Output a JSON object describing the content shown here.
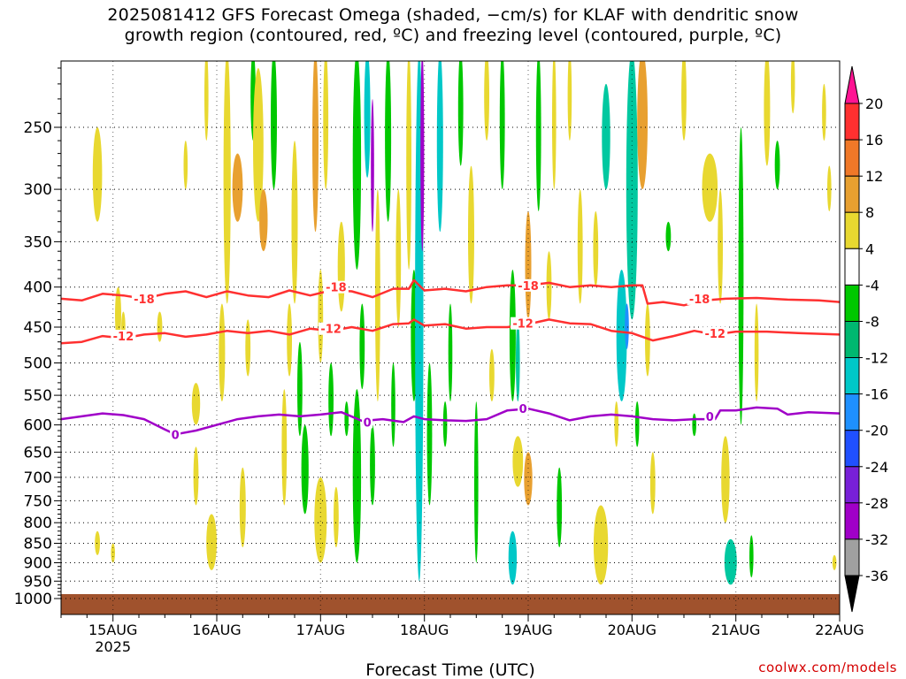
{
  "title": {
    "line1": "2025081412 GFS Forecast Omega (shaded, −cm/s) for KLAF with dendritic snow",
    "line2": "growth region (contoured, red, ºC) and freezing level (contoured, purple, ºC)"
  },
  "credit": "coolwx.com/models",
  "chart_data": {
    "type": "heatmap",
    "xlabel": "Forecast Time (UTC)",
    "ylabel": "",
    "x_ticks": [
      {
        "label": "15AUG",
        "sub": "2025",
        "day": 15
      },
      {
        "label": "16AUG",
        "sub": "",
        "day": 16
      },
      {
        "label": "17AUG",
        "sub": "",
        "day": 17
      },
      {
        "label": "18AUG",
        "sub": "",
        "day": 18
      },
      {
        "label": "19AUG",
        "sub": "",
        "day": 19
      },
      {
        "label": "20AUG",
        "sub": "",
        "day": 20
      },
      {
        "label": "21AUG",
        "sub": "",
        "day": 21
      },
      {
        "label": "22AUG",
        "sub": "",
        "day": 22
      }
    ],
    "xlim": [
      "2025-08-14T12Z",
      "2025-08-22T00Z"
    ],
    "y_ticks": [
      250,
      300,
      350,
      400,
      450,
      500,
      550,
      600,
      650,
      700,
      750,
      800,
      850,
      900,
      950,
      1000
    ],
    "ylim": [
      200,
      1020
    ],
    "y_scale": "log-pressure",
    "grid": true,
    "colorbar": {
      "labels": [
        "20",
        "16",
        "12",
        "8",
        "4",
        "-4",
        "-8",
        "-12",
        "-16",
        "-20",
        "-24",
        "-28",
        "-32",
        "-36"
      ],
      "colors": [
        "#ff1493",
        "#ff3030",
        "#f07828",
        "#e8a030",
        "#e8d830",
        "#ffffff",
        "#00c800",
        "#00b870",
        "#00c8c8",
        "#1e90ff",
        "#2050ff",
        "#7820d8",
        "#a000c8",
        "#a0a0a0",
        "#000000"
      ]
    },
    "shading_colors": {
      "light_yellow": "#e8d830",
      "orange": "#e8a030",
      "green": "#00c800",
      "teal": "#00c8a0",
      "cyan": "#00c8c8",
      "blue": "#1e90ff",
      "purple": "#a000c8"
    },
    "ground_color": "#a0522d",
    "contours": [
      {
        "name": "-18",
        "color": "#ff3030",
        "points": [
          [
            14.5,
            414
          ],
          [
            14.7,
            416
          ],
          [
            14.9,
            408
          ],
          [
            15.1,
            410
          ],
          [
            15.3,
            414
          ],
          [
            15.5,
            408
          ],
          [
            15.7,
            405
          ],
          [
            15.9,
            412
          ],
          [
            16.1,
            405
          ],
          [
            16.3,
            410
          ],
          [
            16.5,
            412
          ],
          [
            16.7,
            404
          ],
          [
            16.9,
            410
          ],
          [
            17.1,
            404
          ],
          [
            17.3,
            405
          ],
          [
            17.5,
            412
          ],
          [
            17.7,
            402
          ],
          [
            17.85,
            402
          ],
          [
            17.9,
            392
          ],
          [
            18.0,
            404
          ],
          [
            18.2,
            402
          ],
          [
            18.4,
            405
          ],
          [
            18.6,
            400
          ],
          [
            18.8,
            398
          ],
          [
            19.0,
            398
          ],
          [
            19.2,
            395
          ],
          [
            19.4,
            400
          ],
          [
            19.6,
            398
          ],
          [
            19.8,
            400
          ],
          [
            20.0,
            398
          ],
          [
            20.1,
            398
          ],
          [
            20.15,
            420
          ],
          [
            20.3,
            418
          ],
          [
            20.5,
            422
          ],
          [
            20.7,
            416
          ],
          [
            20.9,
            414
          ],
          [
            21.2,
            413
          ],
          [
            21.5,
            415
          ],
          [
            21.8,
            416
          ],
          [
            22.0,
            418
          ]
        ],
        "labels": [
          [
            15.3,
            414
          ],
          [
            17.15,
            400
          ],
          [
            19.0,
            398
          ],
          [
            20.65,
            414
          ]
        ]
      },
      {
        "name": "-12",
        "color": "#ff3030",
        "points": [
          [
            14.5,
            472
          ],
          [
            14.7,
            470
          ],
          [
            14.9,
            462
          ],
          [
            15.1,
            465
          ],
          [
            15.3,
            460
          ],
          [
            15.5,
            458
          ],
          [
            15.7,
            463
          ],
          [
            15.9,
            460
          ],
          [
            16.1,
            455
          ],
          [
            16.3,
            458
          ],
          [
            16.5,
            455
          ],
          [
            16.7,
            460
          ],
          [
            16.9,
            452
          ],
          [
            17.1,
            455
          ],
          [
            17.3,
            450
          ],
          [
            17.5,
            455
          ],
          [
            17.7,
            446
          ],
          [
            17.85,
            445
          ],
          [
            17.9,
            440
          ],
          [
            18.0,
            448
          ],
          [
            18.2,
            446
          ],
          [
            18.4,
            452
          ],
          [
            18.6,
            450
          ],
          [
            18.8,
            450
          ],
          [
            19.0,
            446
          ],
          [
            19.2,
            440
          ],
          [
            19.4,
            445
          ],
          [
            19.6,
            446
          ],
          [
            19.8,
            455
          ],
          [
            20.0,
            458
          ],
          [
            20.2,
            468
          ],
          [
            20.4,
            462
          ],
          [
            20.6,
            455
          ],
          [
            20.8,
            460
          ],
          [
            21.0,
            456
          ],
          [
            21.3,
            456
          ],
          [
            21.6,
            458
          ],
          [
            22.0,
            460
          ]
        ],
        "labels": [
          [
            15.1,
            462
          ],
          [
            17.1,
            452
          ],
          [
            18.95,
            445
          ],
          [
            20.8,
            458
          ]
        ]
      },
      {
        "name": "0",
        "color": "#a000c8",
        "points": [
          [
            14.5,
            590
          ],
          [
            14.7,
            585
          ],
          [
            14.9,
            580
          ],
          [
            15.1,
            583
          ],
          [
            15.3,
            590
          ],
          [
            15.5,
            608
          ],
          [
            15.6,
            617
          ],
          [
            15.8,
            610
          ],
          [
            16.0,
            600
          ],
          [
            16.2,
            590
          ],
          [
            16.4,
            585
          ],
          [
            16.6,
            582
          ],
          [
            16.8,
            585
          ],
          [
            17.0,
            582
          ],
          [
            17.2,
            578
          ],
          [
            17.4,
            593
          ],
          [
            17.6,
            590
          ],
          [
            17.8,
            595
          ],
          [
            17.9,
            585
          ],
          [
            18.0,
            590
          ],
          [
            18.2,
            592
          ],
          [
            18.4,
            593
          ],
          [
            18.6,
            590
          ],
          [
            18.8,
            575
          ],
          [
            19.0,
            572
          ],
          [
            19.2,
            580
          ],
          [
            19.4,
            592
          ],
          [
            19.6,
            585
          ],
          [
            19.8,
            582
          ],
          [
            20.0,
            585
          ],
          [
            20.2,
            590
          ],
          [
            20.4,
            592
          ],
          [
            20.6,
            590
          ],
          [
            20.8,
            590
          ],
          [
            20.85,
            575
          ],
          [
            21.0,
            575
          ],
          [
            21.2,
            570
          ],
          [
            21.4,
            572
          ],
          [
            21.5,
            582
          ],
          [
            21.7,
            578
          ],
          [
            22.0,
            580
          ]
        ],
        "labels": [
          [
            15.6,
            617
          ],
          [
            17.45,
            595
          ],
          [
            18.95,
            572
          ],
          [
            20.75,
            585
          ]
        ]
      }
    ]
  }
}
